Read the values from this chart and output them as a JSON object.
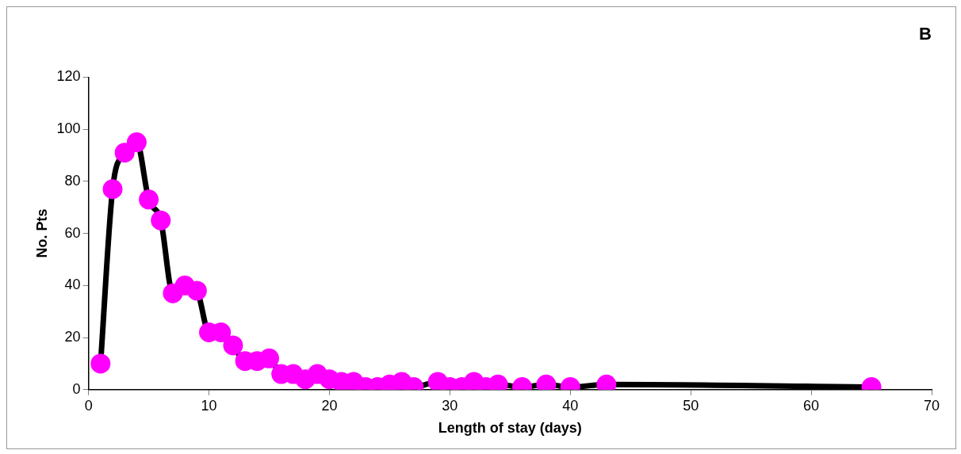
{
  "chart_data": {
    "type": "line",
    "title": "B",
    "xlabel": "Length of stay (days)",
    "ylabel": "No. Pts",
    "x": [
      1,
      2,
      3,
      4,
      5,
      6,
      7,
      8,
      9,
      10,
      11,
      12,
      13,
      14,
      15,
      16,
      17,
      18,
      19,
      20,
      21,
      22,
      23,
      24,
      25,
      26,
      27,
      29,
      30,
      31,
      32,
      33,
      34,
      36,
      38,
      40,
      43,
      65
    ],
    "series": [
      {
        "color": "#ff00ff",
        "values": [
          10,
          77,
          91,
          95,
          73,
          65,
          37,
          40,
          38,
          22,
          22,
          17,
          11,
          11,
          12,
          6,
          6,
          4,
          6,
          4,
          3,
          3,
          1,
          1,
          2,
          3,
          1,
          3,
          1,
          1,
          3,
          1,
          2,
          1,
          2,
          1,
          2,
          1
        ]
      }
    ],
    "xlim": [
      0,
      70
    ],
    "xticks": [
      0,
      10,
      20,
      30,
      40,
      50,
      60,
      70
    ],
    "ylim": [
      0,
      120
    ],
    "yticks": [
      0,
      20,
      40,
      60,
      80,
      100,
      120
    ],
    "grid": false,
    "legend": false,
    "marker": "circle",
    "line_style": "solid"
  }
}
